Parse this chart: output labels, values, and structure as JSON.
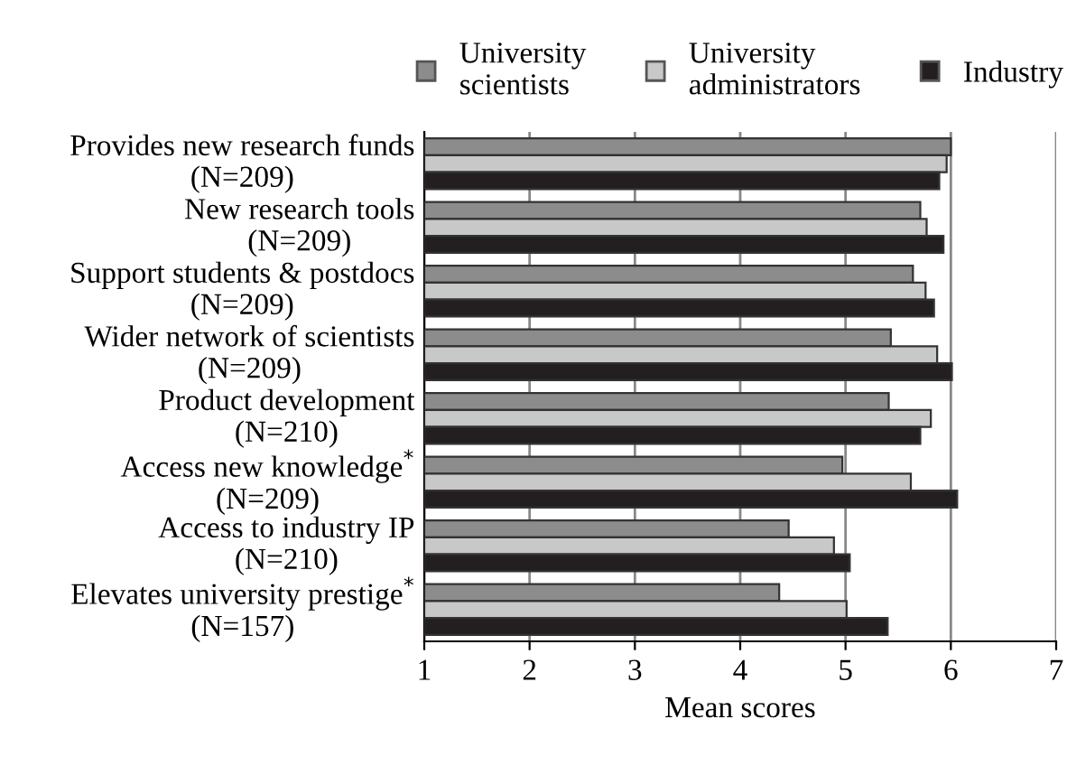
{
  "chart_data": {
    "type": "bar",
    "orientation": "horizontal",
    "xlabel": "Mean scores",
    "categories": [
      "Provides new research funds\n(N=209)",
      "New research tools\n(N=209)",
      "Support students & postdocs\n(N=209)",
      "Wider network of scientists\n(N=209)",
      "Product development\n(N=210)",
      "Access new knowledge$^{*}$\n(N=209)",
      "Access to industry IP\n(N=210)",
      "Elevates university prestige$^{*}$\n(N=157)"
    ],
    "series": [
      {
        "name": "University\nscientists",
        "color": "#8c8c8c",
        "values": [
          6.0,
          5.71,
          5.64,
          5.43,
          5.41,
          4.97,
          4.46,
          4.37
        ]
      },
      {
        "name": "University\nadministrators",
        "color": "#c8c8c8",
        "values": [
          5.96,
          5.77,
          5.76,
          5.87,
          5.81,
          5.62,
          4.89,
          5.01
        ]
      },
      {
        "name": "Industry",
        "color": "#231f20",
        "values": [
          5.89,
          5.93,
          5.84,
          6.01,
          5.71,
          6.06,
          5.04,
          5.4
        ]
      }
    ],
    "xlim": [
      1,
      7
    ],
    "xticks": [
      1,
      2,
      3,
      4,
      5,
      6,
      7
    ],
    "grid": "x",
    "legend": "top"
  }
}
